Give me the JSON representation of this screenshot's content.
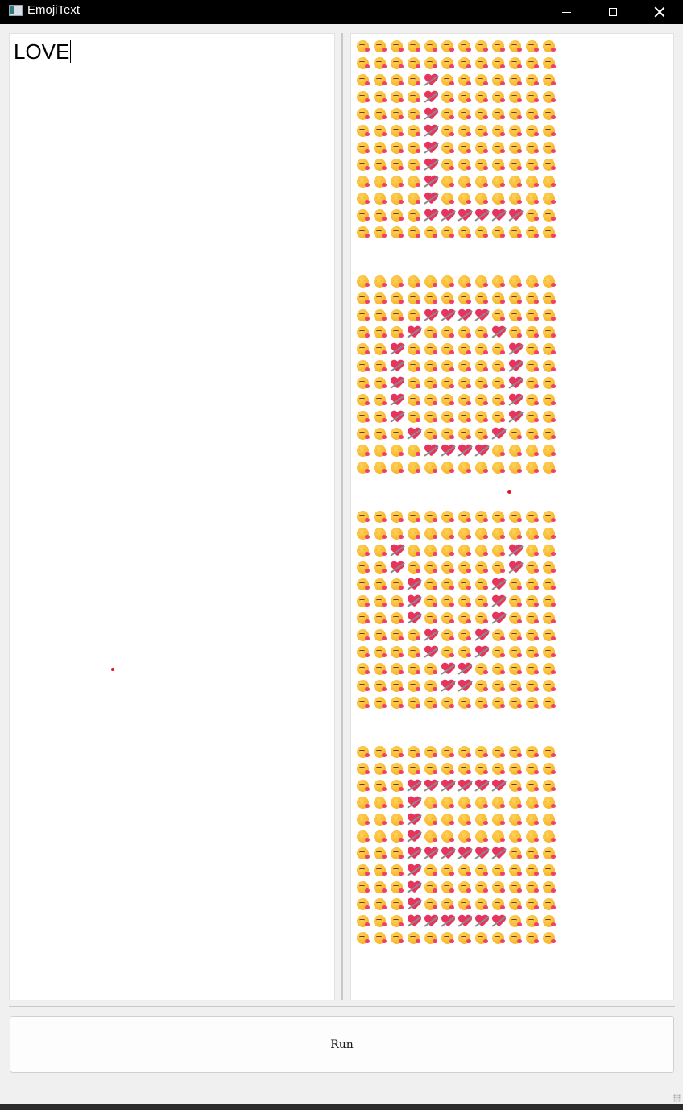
{
  "window": {
    "title": "EmojiText",
    "app_icon": "window-app-icon",
    "controls": [
      "minimize-icon",
      "maximize-icon",
      "close-icon"
    ]
  },
  "input": {
    "value": "LOVE"
  },
  "output": {
    "background_emoji": "😘",
    "foreground_emoji": "💘",
    "grid": {
      "rows": 12,
      "cols": 12,
      "blocks": [
        {
          "letter": "L",
          "pattern": [
            "............",
            "............",
            "....#.......",
            "....#.......",
            "....#.......",
            "....#.......",
            "....#.......",
            "....#.......",
            "....#.......",
            "....#.......",
            "....######..",
            "............"
          ]
        },
        {
          "letter": "O",
          "pattern": [
            "............",
            "............",
            "....####....",
            "...#....#...",
            "..#......#..",
            "..#......#..",
            "..#......#..",
            "..#......#..",
            "..#......#..",
            "...#....#...",
            "....####....",
            "............"
          ]
        },
        {
          "letter": "V",
          "pattern": [
            "............",
            "............",
            "..#......#..",
            "..#......#..",
            "...#....#...",
            "...#....#...",
            "...#....#...",
            "....#..#....",
            "....#..#....",
            ".....##.....",
            ".....##.....",
            "............"
          ]
        },
        {
          "letter": "E",
          "pattern": [
            "............",
            "............",
            "...######...",
            "...#........",
            "...#........",
            "...#........",
            "...######...",
            "...#........",
            "...#........",
            "...#........",
            "...######...",
            "............"
          ]
        }
      ]
    }
  },
  "run_button": {
    "label": "Run"
  },
  "colors": {
    "titlebar": "#000000",
    "heart": "#e8335f",
    "face": "#f7b52b",
    "focus_border": "#0f6cbd",
    "dot": "#e81123"
  }
}
